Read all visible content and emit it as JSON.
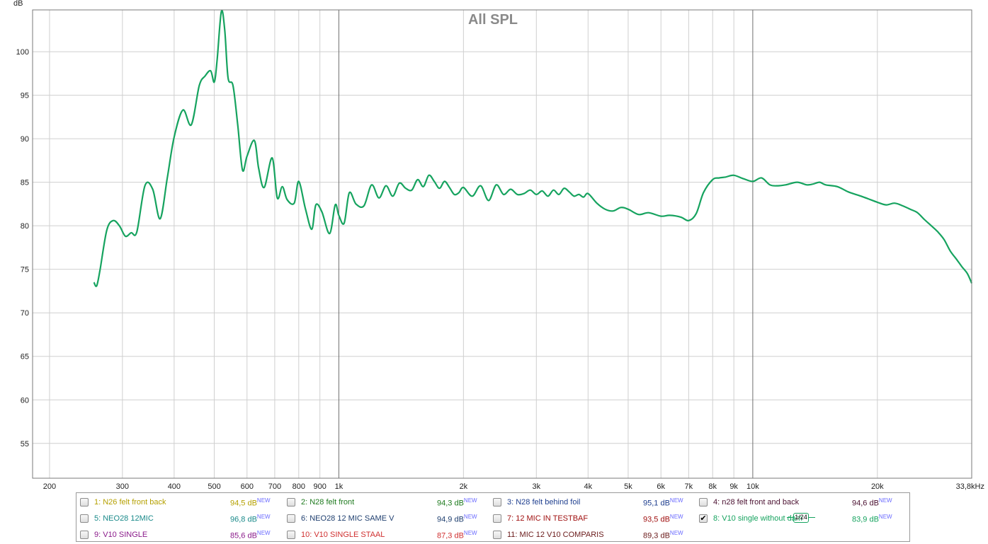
{
  "chart_data": {
    "type": "line",
    "title": "All SPL",
    "ylabel": "dB",
    "xscale": "log",
    "xlim": [
      182,
      33800
    ],
    "ylim": [
      51,
      104.8
    ],
    "yticks": [
      55,
      60,
      65,
      70,
      75,
      80,
      85,
      90,
      95,
      100
    ],
    "xticks": [
      {
        "v": 200,
        "label": "200"
      },
      {
        "v": 300,
        "label": "300"
      },
      {
        "v": 400,
        "label": "400"
      },
      {
        "v": 500,
        "label": "500"
      },
      {
        "v": 600,
        "label": "600"
      },
      {
        "v": 700,
        "label": "700"
      },
      {
        "v": 800,
        "label": "800"
      },
      {
        "v": 900,
        "label": "900"
      },
      {
        "v": 1000,
        "label": "1k"
      },
      {
        "v": 2000,
        "label": "2k"
      },
      {
        "v": 3000,
        "label": "3k"
      },
      {
        "v": 4000,
        "label": "4k"
      },
      {
        "v": 5000,
        "label": "5k"
      },
      {
        "v": 6000,
        "label": "6k"
      },
      {
        "v": 7000,
        "label": "7k"
      },
      {
        "v": 8000,
        "label": "8k"
      },
      {
        "v": 9000,
        "label": "9k"
      },
      {
        "v": 10000,
        "label": "10k"
      },
      {
        "v": 20000,
        "label": "20k"
      }
    ],
    "x_end_label": "33,8kHz",
    "grid": true,
    "series": [
      {
        "name": "8: V10 single without dam",
        "color": "#16a35f",
        "x": [
          256,
          260,
          265,
          275,
          285,
          295,
          305,
          315,
          325,
          340,
          355,
          370,
          385,
          400,
          420,
          440,
          460,
          475,
          490,
          500,
          508,
          520,
          530,
          540,
          555,
          570,
          585,
          600,
          625,
          640,
          660,
          690,
          710,
          730,
          750,
          780,
          800,
          830,
          860,
          880,
          910,
          950,
          980,
          1000,
          1030,
          1060,
          1100,
          1150,
          1200,
          1250,
          1300,
          1350,
          1400,
          1450,
          1500,
          1550,
          1600,
          1650,
          1700,
          1750,
          1800,
          1850,
          1900,
          1950,
          2000,
          2100,
          2200,
          2300,
          2400,
          2500,
          2600,
          2700,
          2800,
          2900,
          3000,
          3100,
          3200,
          3300,
          3400,
          3500,
          3600,
          3700,
          3800,
          3900,
          4000,
          4200,
          4400,
          4600,
          4800,
          5000,
          5300,
          5600,
          6000,
          6300,
          6700,
          7000,
          7300,
          7600,
          8000,
          8300,
          8600,
          9000,
          9500,
          10000,
          10500,
          11000,
          11500,
          12000,
          12800,
          13500,
          14000,
          14500,
          15000,
          16000,
          17000,
          18000,
          19000,
          20000,
          21000,
          22000,
          23000,
          24000,
          25000,
          26000,
          27000,
          28000,
          29000,
          30000,
          31000,
          32000,
          33000,
          33800
        ],
        "y": [
          73.5,
          73.1,
          75,
          79.5,
          80.6,
          80,
          78.8,
          79.2,
          79.3,
          84.6,
          84.2,
          80.8,
          85.5,
          90.2,
          93.3,
          91.6,
          96.1,
          97.2,
          97.8,
          96.5,
          99,
          104.6,
          102.5,
          97,
          96.1,
          91.5,
          86.4,
          88,
          89.8,
          86.6,
          84.4,
          87.8,
          83.2,
          84.5,
          83,
          82.6,
          85.1,
          82,
          79.6,
          82.4,
          81.6,
          79.1,
          82.4,
          81.2,
          80.3,
          83.8,
          82.5,
          82.3,
          84.7,
          83.2,
          84.6,
          83.4,
          84.9,
          84.3,
          84.1,
          85.3,
          84.5,
          85.8,
          85.1,
          84.3,
          85.1,
          84.4,
          83.6,
          83.8,
          84.4,
          83.4,
          84.6,
          82.9,
          84.7,
          83.6,
          84.2,
          83.6,
          83.7,
          84.1,
          83.6,
          84,
          83.4,
          84.1,
          83.6,
          84.3,
          83.9,
          83.4,
          83.6,
          83.3,
          83.7,
          82.6,
          81.9,
          81.7,
          82.1,
          81.9,
          81.3,
          81.5,
          81.1,
          81.2,
          81,
          80.6,
          81.4,
          83.8,
          85.3,
          85.5,
          85.6,
          85.8,
          85.4,
          85.1,
          85.5,
          84.7,
          84.6,
          84.7,
          85,
          84.7,
          84.8,
          85,
          84.7,
          84.5,
          83.9,
          83.5,
          83.1,
          82.7,
          82.4,
          82.6,
          82.3,
          81.9,
          81.5,
          80.7,
          80,
          79.3,
          78.4,
          77.1,
          76.2,
          75.3,
          74.5,
          73.4
        ]
      }
    ]
  },
  "legend": {
    "entries": [
      {
        "label": "1: N26 felt front back",
        "value": "94,5 dB",
        "badge": "NEW",
        "color": "#b5a000",
        "checked": false
      },
      {
        "label": "2: N28 felt front",
        "value": "94,3 dB",
        "badge": "NEW",
        "color": "#1e7a1e",
        "checked": false
      },
      {
        "label": "3: N28 felt behind foil",
        "value": "95,1 dB",
        "badge": "NEW",
        "color": "#1f3f8f",
        "checked": false
      },
      {
        "label": "4: n28 felt front and back",
        "value": "94,6 dB",
        "badge": "NEW",
        "color": "#4a1030",
        "checked": false
      },
      {
        "label": "5: NEO28 12MIC",
        "value": "96,8 dB",
        "badge": "NEW",
        "color": "#1a8a8a",
        "checked": false
      },
      {
        "label": "6: NEO28 12 MIC SAME V",
        "value": "94,9 dB",
        "badge": "NEW",
        "color": "#1f3f6f",
        "checked": false
      },
      {
        "label": "7: 12 MIC IN TESTBAF",
        "value": "93,5 dB",
        "badge": "NEW",
        "color": "#a01010",
        "checked": false
      },
      {
        "label": "8: V10 single without dam",
        "value": "83,9 dB",
        "badge": "NEW",
        "color": "#16a35f",
        "checked": true,
        "smoothing": "1/24"
      },
      {
        "label": "9: V10 SINGLE",
        "value": "85,6 dB",
        "badge": "NEW",
        "color": "#8a1a8a",
        "checked": false
      },
      {
        "label": "10: V10 SINGLE STAAL",
        "value": "87,3 dB",
        "badge": "NEW",
        "color": "#d03030",
        "checked": false
      },
      {
        "label": "11: MIC 12 V10 COMPARIS",
        "value": "89,3 dB",
        "badge": "NEW",
        "color": "#6a1a1a",
        "checked": false
      }
    ]
  }
}
